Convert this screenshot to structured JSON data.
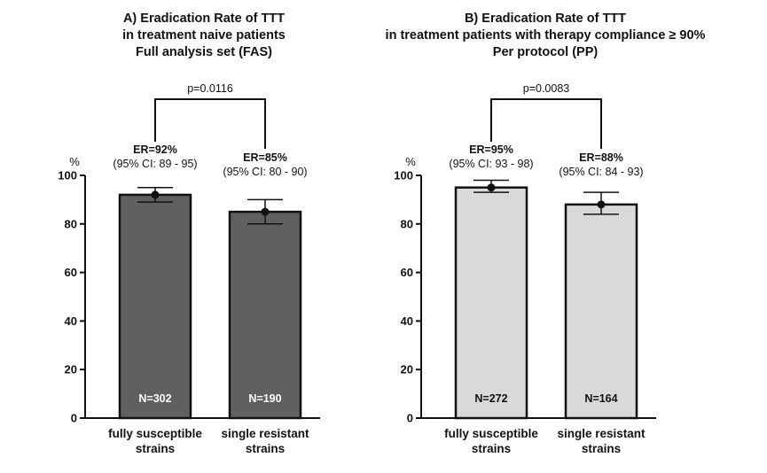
{
  "chart_data": [
    {
      "type": "bar",
      "title_lines": [
        "A) Eradication Rate of TTT",
        "in treatment naive patients",
        "Full analysis set (FAS)"
      ],
      "ylabel": "%",
      "ylim": [
        0,
        100
      ],
      "yticks": [
        "0",
        "20",
        "40",
        "60",
        "80",
        "100"
      ],
      "categories": [
        [
          "fully susceptible",
          "strains"
        ],
        [
          "single resistant",
          "strains"
        ]
      ],
      "values": [
        92,
        85
      ],
      "ci_low": [
        89,
        80
      ],
      "ci_high": [
        95,
        90
      ],
      "er_labels": [
        "ER=92%",
        "ER=85%"
      ],
      "ci_labels": [
        "(95% CI: 89 - 95)",
        "(95% CI: 80 - 90)"
      ],
      "n_labels": [
        "N=302",
        "N=190"
      ],
      "p_value": "p=0.0116",
      "bar_color": "#606060",
      "n_label_color": "#ffffff"
    },
    {
      "type": "bar",
      "title_lines": [
        "B) Eradication Rate of TTT",
        "in treatment patients with therapy compliance ≥ 90%",
        "Per protocol (PP)"
      ],
      "ylabel": "%",
      "ylim": [
        0,
        100
      ],
      "yticks": [
        "0",
        "20",
        "40",
        "60",
        "80",
        "100"
      ],
      "categories": [
        [
          "fully susceptible",
          "strains"
        ],
        [
          "single resistant",
          "strains"
        ]
      ],
      "values": [
        95,
        88
      ],
      "ci_low": [
        93,
        84
      ],
      "ci_high": [
        98,
        93
      ],
      "er_labels": [
        "ER=95%",
        "ER=88%"
      ],
      "ci_labels": [
        "(95% CI: 93 - 98)",
        "(95% CI: 84 - 93)"
      ],
      "n_labels": [
        "N=272",
        "N=164"
      ],
      "p_value": "p=0.0083",
      "bar_color": "#d9d9d9",
      "n_label_color": "#111111"
    }
  ]
}
